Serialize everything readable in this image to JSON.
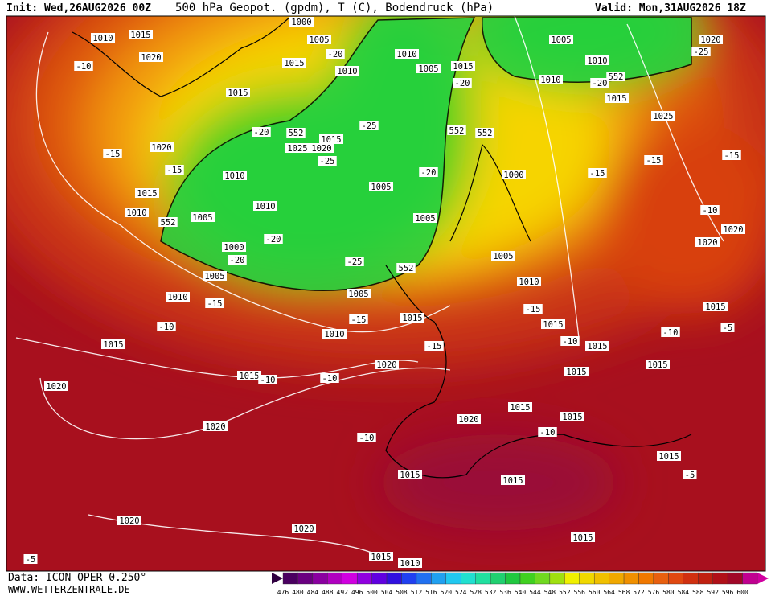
{
  "header": {
    "init": "Init: Wed,26AUG2026 00Z",
    "title": "500 hPa Geopot. (gpdm), T (C), Bodendruck (hPa)",
    "valid": "Valid: Mon,31AUG2026 18Z"
  },
  "footer": {
    "data": "Data: ICON OPER 0.250°",
    "url": "WWW.WETTERZENTRALE.DE"
  },
  "colorbar": {
    "ticks": [
      476,
      480,
      484,
      488,
      492,
      496,
      500,
      504,
      508,
      512,
      516,
      520,
      524,
      528,
      532,
      536,
      540,
      544,
      548,
      552,
      556,
      560,
      564,
      568,
      572,
      576,
      580,
      584,
      588,
      592,
      596,
      600
    ]
  },
  "map": {
    "labels": [
      1010,
      1015,
      1020,
      -10,
      1015,
      -15,
      1020,
      -15,
      1015,
      1010,
      1005,
      552,
      1010,
      1010,
      1025,
      1020,
      -20,
      552,
      1000,
      -20,
      -20,
      1005,
      1010,
      -15,
      -10,
      1015,
      1005,
      -25,
      1005,
      -20,
      1005,
      552,
      -15,
      1010,
      1015,
      -15,
      1020,
      1015,
      -10,
      -10,
      1020,
      1020,
      -10,
      1020,
      1015,
      1015,
      1015,
      -10,
      1015,
      1015,
      1020,
      1020,
      1015,
      1010,
      -5,
      -5,
      1015,
      1015,
      1015,
      1015,
      1015,
      -15,
      1010,
      1005,
      1000,
      -15,
      -15,
      1025,
      1015,
      552,
      -20,
      1010,
      1010,
      1005,
      1020,
      -25,
      1005,
      1015,
      -20,
      1010,
      1010,
      1015,
      1005,
      1000,
      -20,
      552,
      552,
      -25,
      1015,
      -25,
      1020,
      1020,
      -10,
      -15,
      1015,
      -10,
      -5,
      -10
    ]
  }
}
